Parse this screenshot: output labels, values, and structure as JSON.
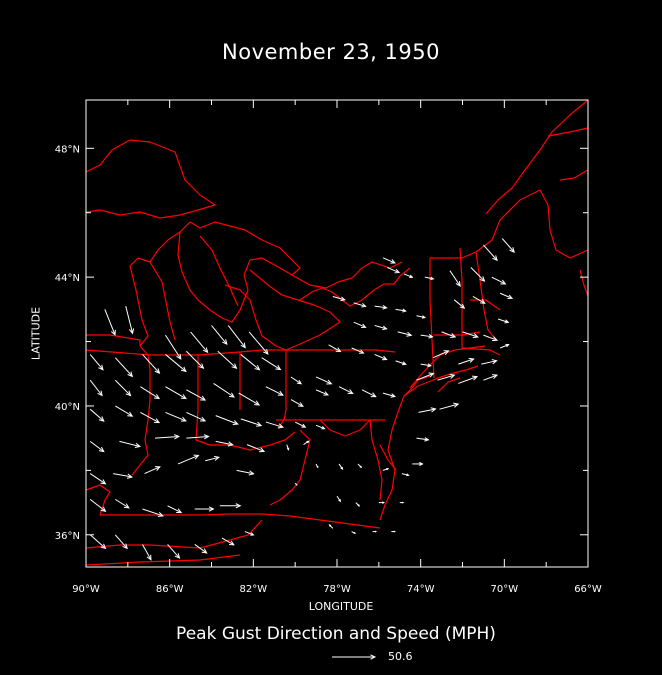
{
  "title": "November 23, 1950",
  "xlabel": "LONGITUDE",
  "ylabel": "LATITUDE",
  "subtitle": "Peak Gust Direction and Speed (MPH)",
  "reference_vector": {
    "value": "50.6",
    "speed": 50.6
  },
  "colors": {
    "background": "#000000",
    "boundaries": "#ff0000",
    "vectors": "#ffffff",
    "frame": "#ffffff"
  },
  "axes": {
    "x_ticks": [
      "90°W",
      "86°W",
      "82°W",
      "78°W",
      "74°W",
      "70°W",
      "66°W"
    ],
    "y_ticks": [
      "36°N",
      "40°N",
      "44°N",
      "48°N"
    ],
    "lon_range": [
      -90,
      -66
    ],
    "lat_range": [
      35,
      49.5
    ]
  },
  "chart_data": {
    "type": "vector-field",
    "title": "November 23, 1950",
    "xlabel": "LONGITUDE",
    "ylabel": "LATITUDE",
    "units": "MPH",
    "vectors_note": "lon, lat, u (east), v (north) in MPH",
    "vectors": [
      [
        -89.1,
        43.0,
        12,
        -30
      ],
      [
        -88.1,
        43.1,
        8,
        -32
      ],
      [
        -86.2,
        42.2,
        18,
        -28
      ],
      [
        -85.0,
        42.3,
        20,
        -24
      ],
      [
        -84.0,
        42.5,
        18,
        -22
      ],
      [
        -83.2,
        42.5,
        20,
        -26
      ],
      [
        -82.2,
        42.3,
        22,
        -26
      ],
      [
        -89.8,
        41.6,
        15,
        -18
      ],
      [
        -88.6,
        41.5,
        20,
        -22
      ],
      [
        -87.3,
        41.6,
        20,
        -22
      ],
      [
        -86.2,
        41.6,
        24,
        -20
      ],
      [
        -85.2,
        41.7,
        20,
        -20
      ],
      [
        -83.7,
        41.7,
        22,
        -20
      ],
      [
        -82.6,
        41.6,
        22,
        -18
      ],
      [
        -81.6,
        41.5,
        22,
        -14
      ],
      [
        -89.8,
        40.8,
        14,
        -18
      ],
      [
        -88.6,
        40.8,
        18,
        -18
      ],
      [
        -87.4,
        40.6,
        22,
        -14
      ],
      [
        -86.2,
        40.6,
        24,
        -14
      ],
      [
        -85.2,
        40.5,
        22,
        -12
      ],
      [
        -83.9,
        40.7,
        24,
        -16
      ],
      [
        -82.7,
        40.4,
        24,
        -14
      ],
      [
        -81.4,
        40.6,
        20,
        -10
      ],
      [
        -80.2,
        40.2,
        14,
        -8
      ],
      [
        -79.0,
        40.5,
        14,
        -6
      ],
      [
        -89.8,
        39.9,
        16,
        -14
      ],
      [
        -88.6,
        40.0,
        20,
        -12
      ],
      [
        -87.4,
        39.8,
        22,
        -12
      ],
      [
        -86.2,
        39.8,
        24,
        -10
      ],
      [
        -85.2,
        39.8,
        22,
        -10
      ],
      [
        -83.8,
        39.7,
        26,
        -10
      ],
      [
        -82.6,
        39.6,
        24,
        -8
      ],
      [
        -81.4,
        39.5,
        20,
        -6
      ],
      [
        -80.0,
        39.5,
        12,
        -6
      ],
      [
        -79.0,
        39.4,
        10,
        -4
      ],
      [
        -89.8,
        38.9,
        16,
        -12
      ],
      [
        -88.4,
        38.9,
        24,
        -6
      ],
      [
        -86.7,
        39.0,
        28,
        2
      ],
      [
        -85.2,
        39.0,
        26,
        2
      ],
      [
        -83.8,
        38.9,
        20,
        -4
      ],
      [
        -82.3,
        38.8,
        20,
        -8
      ],
      [
        -89.8,
        37.9,
        18,
        -12
      ],
      [
        -88.7,
        37.9,
        22,
        -4
      ],
      [
        -87.2,
        37.9,
        18,
        8
      ],
      [
        -85.6,
        38.2,
        24,
        10
      ],
      [
        -84.3,
        38.3,
        16,
        4
      ],
      [
        -82.8,
        38.0,
        20,
        -4
      ],
      [
        -89.8,
        37.1,
        18,
        -14
      ],
      [
        -88.6,
        37.1,
        16,
        -10
      ],
      [
        -87.3,
        36.8,
        24,
        -8
      ],
      [
        -86.1,
        36.9,
        16,
        -8
      ],
      [
        -84.8,
        36.8,
        22,
        0
      ],
      [
        -83.6,
        36.9,
        24,
        0
      ],
      [
        -89.8,
        36.0,
        18,
        -16
      ],
      [
        -88.6,
        36.0,
        14,
        -16
      ],
      [
        -87.3,
        35.7,
        10,
        -18
      ],
      [
        -86.1,
        35.7,
        14,
        -16
      ],
      [
        -84.8,
        35.7,
        14,
        -10
      ],
      [
        -83.5,
        35.9,
        14,
        -8
      ],
      [
        -82.4,
        36.1,
        10,
        -4
      ],
      [
        -80.2,
        40.9,
        12,
        -8
      ],
      [
        -79.0,
        40.9,
        18,
        -8
      ],
      [
        -77.9,
        40.6,
        16,
        -8
      ],
      [
        -76.8,
        40.5,
        16,
        -8
      ],
      [
        -75.8,
        40.4,
        14,
        -4
      ],
      [
        -78.4,
        41.9,
        14,
        -8
      ],
      [
        -77.3,
        41.8,
        14,
        -6
      ],
      [
        -76.2,
        41.6,
        14,
        -6
      ],
      [
        -75.2,
        41.4,
        12,
        -4
      ],
      [
        -74.0,
        41.3,
        12,
        -2
      ],
      [
        -78.2,
        43.4,
        14,
        -4
      ],
      [
        -77.2,
        43.2,
        14,
        -4
      ],
      [
        -76.2,
        43.1,
        14,
        -2
      ],
      [
        -75.2,
        43.0,
        12,
        -2
      ],
      [
        -74.2,
        42.8,
        10,
        -2
      ],
      [
        -77.2,
        42.6,
        14,
        -6
      ],
      [
        -76.2,
        42.5,
        14,
        -4
      ],
      [
        -75.1,
        42.3,
        16,
        -4
      ],
      [
        -74.0,
        42.2,
        14,
        -2
      ],
      [
        -75.6,
        44.3,
        14,
        -6
      ],
      [
        -74.8,
        44.1,
        10,
        -4
      ],
      [
        -73.8,
        44.0,
        10,
        -2
      ],
      [
        -75.8,
        44.6,
        14,
        -6
      ],
      [
        -72.6,
        44.2,
        12,
        -18
      ],
      [
        -71.6,
        44.3,
        16,
        -16
      ],
      [
        -71.0,
        45.0,
        16,
        -18
      ],
      [
        -70.1,
        45.2,
        14,
        -16
      ],
      [
        -72.4,
        43.3,
        12,
        -10
      ],
      [
        -71.5,
        43.4,
        14,
        -8
      ],
      [
        -70.2,
        43.5,
        14,
        -6
      ],
      [
        -70.6,
        44.0,
        16,
        -8
      ],
      [
        -73.0,
        42.3,
        16,
        -6
      ],
      [
        -72.0,
        42.3,
        18,
        -6
      ],
      [
        -71.0,
        42.2,
        16,
        -6
      ],
      [
        -70.3,
        42.7,
        12,
        -4
      ],
      [
        -73.4,
        41.5,
        18,
        8
      ],
      [
        -72.2,
        41.3,
        18,
        6
      ],
      [
        -71.1,
        41.3,
        18,
        4
      ],
      [
        -70.2,
        41.8,
        10,
        4
      ],
      [
        -74.2,
        40.8,
        20,
        8
      ],
      [
        -73.2,
        40.8,
        20,
        6
      ],
      [
        -72.2,
        40.7,
        22,
        8
      ],
      [
        -71.0,
        40.8,
        16,
        6
      ],
      [
        -74.1,
        39.8,
        20,
        4
      ],
      [
        -73.1,
        39.9,
        22,
        6
      ],
      [
        -74.2,
        39.0,
        14,
        -2
      ],
      [
        -74.4,
        38.2,
        12,
        0
      ],
      [
        -77.9,
        38.2,
        4,
        -6
      ],
      [
        -77.0,
        38.2,
        4,
        -4
      ],
      [
        -75.8,
        38.0,
        6,
        2
      ],
      [
        -74.9,
        37.9,
        8,
        -2
      ],
      [
        -78.0,
        37.2,
        4,
        -6
      ],
      [
        -77.1,
        37.0,
        4,
        -4
      ],
      [
        -76.0,
        37.0,
        6,
        0
      ],
      [
        -75.0,
        37.0,
        4,
        0
      ],
      [
        -78.2,
        36.2,
        -4,
        4
      ],
      [
        -77.3,
        36.1,
        4,
        -2
      ],
      [
        -76.3,
        36.1,
        4,
        0
      ],
      [
        -75.4,
        36.1,
        4,
        0
      ],
      [
        -80.4,
        38.8,
        2,
        -6
      ],
      [
        -79.6,
        38.8,
        6,
        4
      ],
      [
        -79.0,
        38.2,
        2,
        -4
      ],
      [
        -80.0,
        37.6,
        2,
        -2
      ]
    ]
  }
}
